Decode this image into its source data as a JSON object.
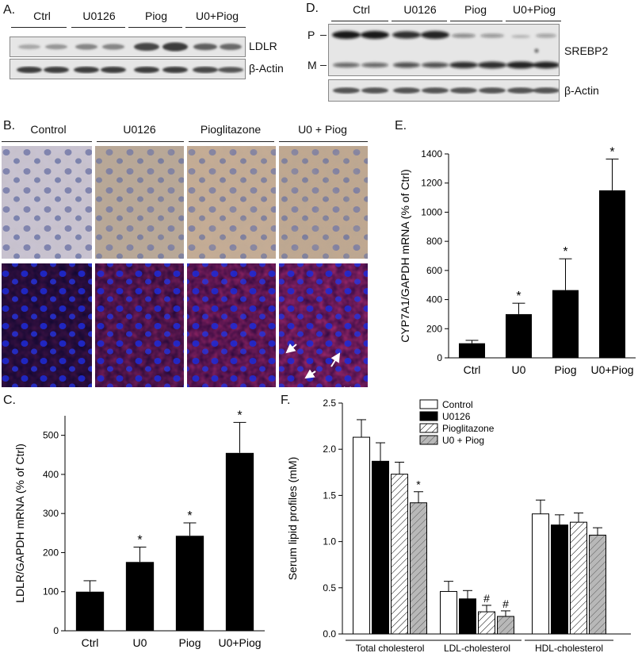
{
  "panel_a": {
    "label": "A.",
    "groups": [
      "Ctrl",
      "U0126",
      "Piog",
      "U0+Piog"
    ],
    "rows": [
      "LDLR",
      "β-Actin"
    ]
  },
  "panel_d": {
    "label": "D.",
    "groups": [
      "Ctrl",
      "U0126",
      "Piog",
      "U0+Piog"
    ],
    "marker_p": "P",
    "marker_m": "M",
    "protein": "SREBP2",
    "loading": "β-Actin"
  },
  "panel_b": {
    "label": "B.",
    "groups": [
      "Control",
      "U0126",
      "Pioglitazone",
      "U0 + Piog"
    ]
  },
  "chart_data": [
    {
      "panel": "E.",
      "type": "bar",
      "categories": [
        "Ctrl",
        "U0",
        "Piog",
        "U0+Piog"
      ],
      "values": [
        100,
        300,
        465,
        1150
      ],
      "errors": [
        20,
        75,
        215,
        215
      ],
      "significance": [
        "",
        "*",
        "*",
        "*"
      ],
      "ylabel": "CYP7A1/GAPDH mRNA (% of Ctrl)",
      "xlabel": "",
      "ylim": [
        0,
        1400
      ],
      "yticks": [
        0,
        200,
        400,
        600,
        800,
        1000,
        1200,
        1400
      ],
      "bar_color": "#000000"
    },
    {
      "panel": "C.",
      "type": "bar",
      "categories": [
        "Ctrl",
        "U0",
        "Piog",
        "U0+Piog"
      ],
      "values": [
        100,
        176,
        243,
        455
      ],
      "errors": [
        28,
        38,
        33,
        78
      ],
      "significance": [
        "",
        "*",
        "*",
        "*"
      ],
      "ylabel": "LDLR/GAPDH mRNA (% of Ctrl)",
      "xlabel": "",
      "ylim": [
        0,
        550
      ],
      "yticks": [
        0,
        100,
        200,
        300,
        400,
        500
      ],
      "bar_color": "#000000"
    },
    {
      "panel": "F.",
      "type": "bar",
      "categories": [
        "Total cholesterol",
        "LDL-cholesterol",
        "HDL-cholesterol"
      ],
      "series": [
        {
          "name": "Control",
          "values": [
            2.13,
            0.46,
            1.3
          ],
          "errors": [
            0.19,
            0.11,
            0.15
          ],
          "marks": [
            "",
            "",
            ""
          ]
        },
        {
          "name": "U0126",
          "values": [
            1.87,
            0.38,
            1.18
          ],
          "errors": [
            0.2,
            0.09,
            0.11
          ],
          "marks": [
            "",
            "",
            ""
          ]
        },
        {
          "name": "Pioglitazone",
          "values": [
            1.73,
            0.24,
            1.21
          ],
          "errors": [
            0.13,
            0.07,
            0.1
          ],
          "marks": [
            "",
            "#",
            ""
          ]
        },
        {
          "name": "U0 + Piog",
          "values": [
            1.42,
            0.19,
            1.07
          ],
          "errors": [
            0.12,
            0.06,
            0.08
          ],
          "marks": [
            "*",
            "#",
            ""
          ]
        }
      ],
      "ylabel": "Serum lipid profiles (mM)",
      "xlabel": "",
      "ylim": [
        0,
        2.5
      ],
      "yticks": [
        "0.0",
        "0.5",
        "1.0",
        "1.5",
        "2.0",
        "2.5"
      ],
      "legend_position": "top-center"
    }
  ]
}
